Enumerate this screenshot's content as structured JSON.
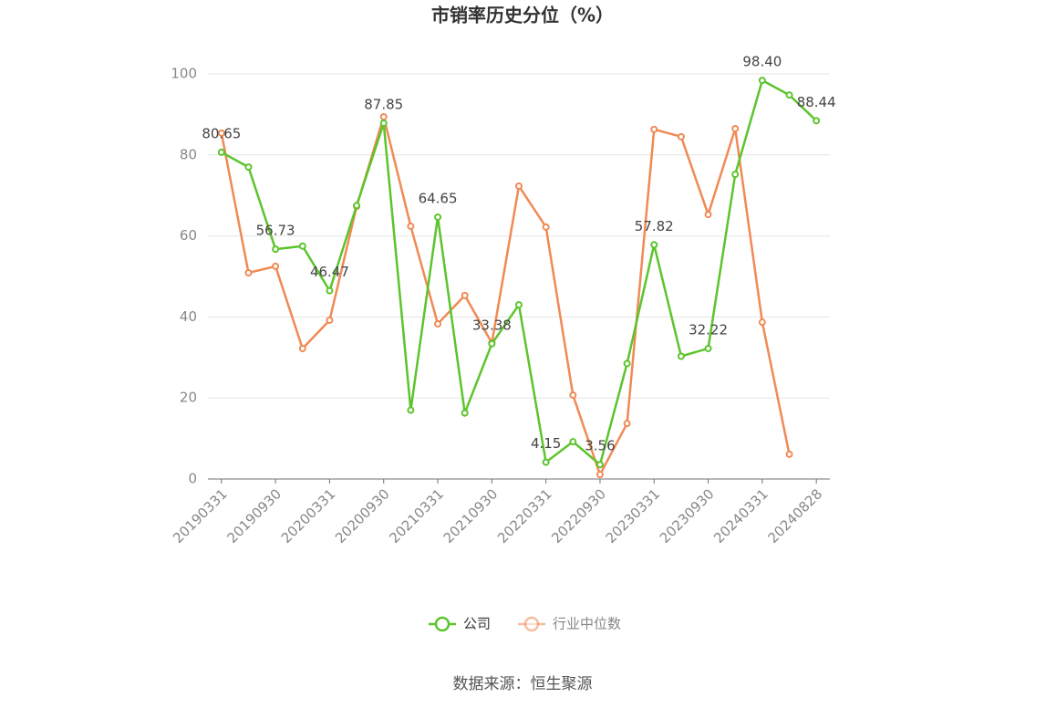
{
  "chart_data": {
    "type": "line",
    "title": "市销率历史分位（%）",
    "source": "数据来源：恒生聚源",
    "categories": [
      "20190331",
      null,
      "20190930",
      null,
      "20200331",
      null,
      "20200930",
      null,
      "20210331",
      null,
      "20210930",
      null,
      "20220331",
      null,
      "20220930",
      null,
      "20230331",
      null,
      "20230930",
      null,
      "20240331",
      null,
      "20240828"
    ],
    "series": [
      {
        "name": "公司",
        "color": "#5cc42c",
        "values": [
          80.65,
          77,
          56.73,
          57.5,
          46.47,
          67.5,
          87.85,
          17,
          64.65,
          16.3,
          33.38,
          43,
          4.15,
          9.2,
          3.56,
          28.5,
          57.82,
          30.3,
          32.22,
          75.2,
          98.4,
          94.8,
          88.44
        ],
        "value_labels": [
          "80.65",
          null,
          "56.73",
          null,
          "46.47",
          null,
          "87.85",
          null,
          "64.65",
          null,
          "33.38",
          null,
          "4.15",
          null,
          "3.56",
          null,
          "57.82",
          null,
          "32.22",
          null,
          "98.40",
          null,
          "88.44"
        ]
      },
      {
        "name": "行业中位数",
        "color": "#f08a55",
        "values": [
          85.4,
          50.9,
          52.5,
          32.2,
          39.2,
          67.3,
          89.4,
          62.4,
          38.3,
          45.3,
          33.6,
          72.3,
          62.2,
          20.7,
          1.1,
          13.7,
          86.3,
          84.5,
          65.3,
          86.5,
          38.7,
          6.1,
          null
        ]
      }
    ],
    "ylim": [
      0,
      100
    ],
    "yticks": [
      0,
      20,
      40,
      60,
      80,
      100
    ],
    "grid": true,
    "legend": "bottom"
  }
}
